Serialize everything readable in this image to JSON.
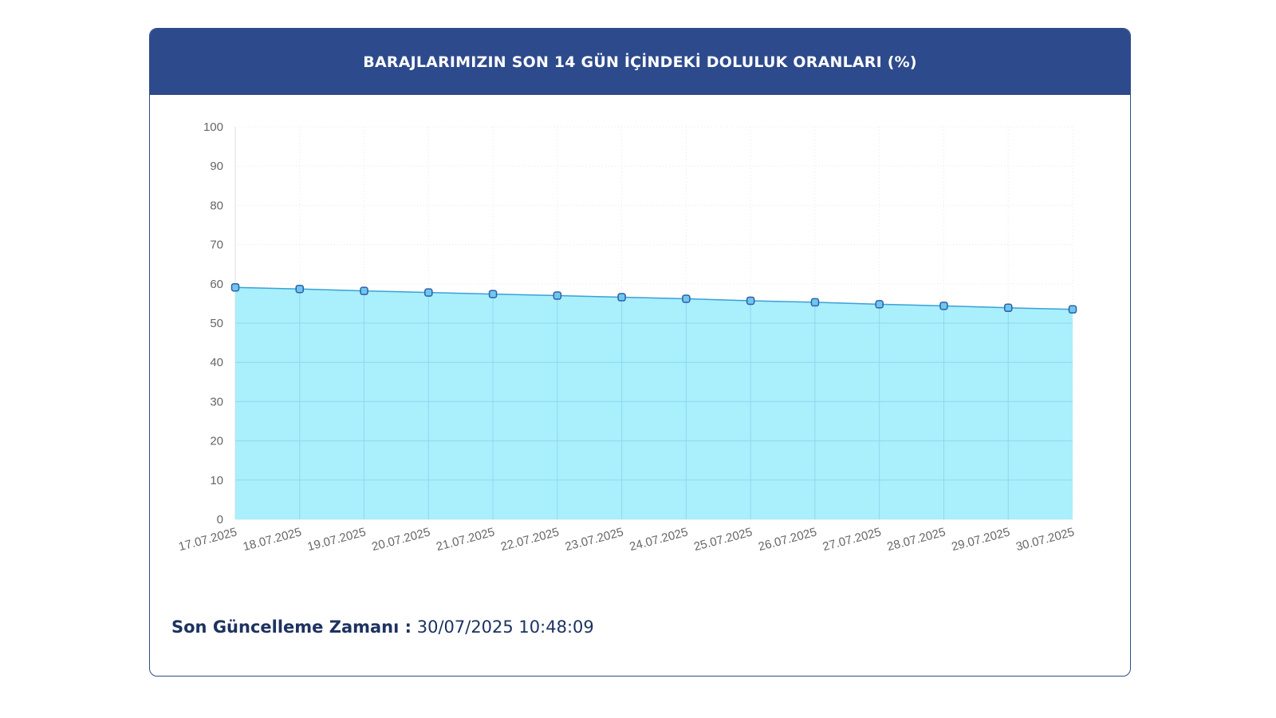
{
  "card": {
    "title": "BARAJLARIMIZIN SON 14 GÜN İÇİNDEKİ DOLULUK ORANLARI (%)",
    "footer_label": "Son Güncelleme Zamanı :",
    "footer_value": "30/07/2025 10:48:09"
  },
  "colors": {
    "header": "#2d4a8c",
    "area_fill": "#a9effc",
    "line": "#3aa0d8",
    "marker_fill": "#6fc7f0",
    "marker_stroke": "#2f5fa5",
    "grid": "#e8e8e8"
  },
  "chart_data": {
    "type": "area",
    "categories": [
      "17.07.2025",
      "18.07.2025",
      "19.07.2025",
      "20.07.2025",
      "21.07.2025",
      "22.07.2025",
      "23.07.2025",
      "24.07.2025",
      "25.07.2025",
      "26.07.2025",
      "27.07.2025",
      "28.07.2025",
      "29.07.2025",
      "30.07.2025"
    ],
    "values": [
      59.1,
      58.7,
      58.2,
      57.8,
      57.4,
      57.0,
      56.6,
      56.2,
      55.7,
      55.3,
      54.8,
      54.4,
      53.9,
      53.5
    ],
    "ylim": [
      0,
      100
    ],
    "yticks": [
      0,
      10,
      20,
      30,
      40,
      50,
      60,
      70,
      80,
      90,
      100
    ],
    "grid": true,
    "legend": false
  }
}
